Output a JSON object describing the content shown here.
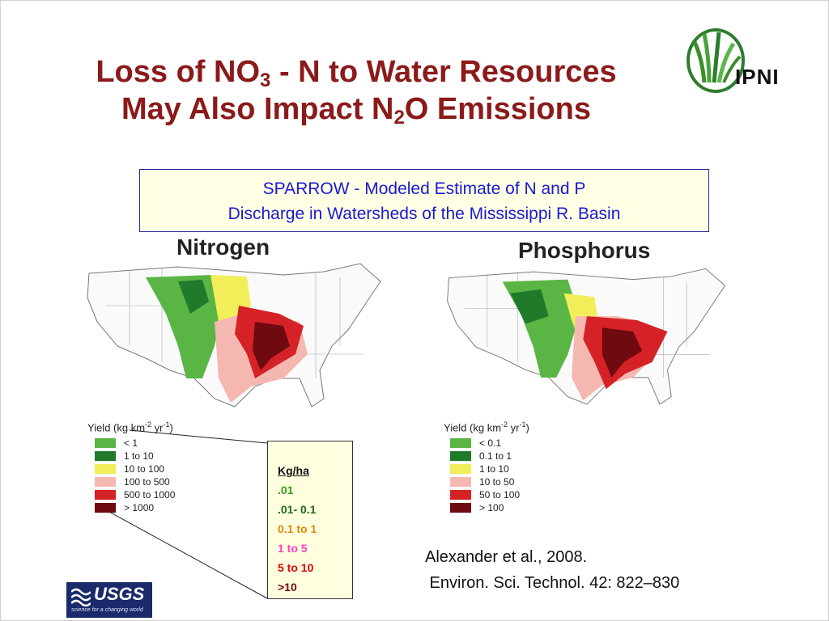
{
  "title": {
    "line1_a": "Loss of NO",
    "line1_sub": "3",
    "line1_b": " - N to Water Resources",
    "line2_a": "May Also Impact N",
    "line2_sub": "2",
    "line2_b": "O Emissions"
  },
  "logo": {
    "text": "IPNI",
    "icon": "ipni-grass-icon"
  },
  "sparrow_box": {
    "line1": "SPARROW - Modeled Estimate of  N  and P",
    "line2": "Discharge in Watersheds of the Mississippi R. Basin"
  },
  "maps": {
    "nitrogen": {
      "title": "Nitrogen",
      "yield_title_a": "Yield (kg km",
      "yield_title_sup": "-2",
      "yield_title_b": " yr",
      "yield_title_sup2": "-1",
      "yield_title_c": ")",
      "legend": [
        {
          "label": "< 1",
          "color": "#5ab545"
        },
        {
          "label": "1 to 10",
          "color": "#1f7a2a"
        },
        {
          "label": "10 to 100",
          "color": "#f2ee5a"
        },
        {
          "label": "100 to 500",
          "color": "#f5b8b0"
        },
        {
          "label": "500 to 1000",
          "color": "#d42226"
        },
        {
          "label": "> 1000",
          "color": "#6e0a10"
        }
      ]
    },
    "phosphorus": {
      "title": "Phosphorus",
      "yield_title_a": "Yield (kg km",
      "yield_title_sup": "-2",
      "yield_title_b": " yr",
      "yield_title_sup2": "-1",
      "yield_title_c": ")",
      "legend": [
        {
          "label": "< 0.1",
          "color": "#5ab545"
        },
        {
          "label": "0.1 to 1",
          "color": "#1f7a2a"
        },
        {
          "label": "1 to 10",
          "color": "#f2ee5a"
        },
        {
          "label": "10 to 50",
          "color": "#f5b8b0"
        },
        {
          "label": "50 to 100",
          "color": "#d42226"
        },
        {
          "label": "> 100",
          "color": "#6e0a10"
        }
      ]
    }
  },
  "kgha": {
    "header": "Kg/ha",
    "rows": [
      {
        "label": ".01",
        "color": "#3a9a1a"
      },
      {
        "label": ".01- 0.1",
        "color": "#1d6a16"
      },
      {
        "label": "0.1 to 1",
        "color": "#e08a00"
      },
      {
        "label": "1 to 5",
        "color": "#ff3fbf"
      },
      {
        "label": "5 to 10",
        "color": "#e00000"
      },
      {
        "label": ">10",
        "color": "#6e0a10"
      }
    ]
  },
  "citation": {
    "line1": "Alexander et al., 2008.",
    "line2": " Environ. Sci. Technol. 42: 822–830"
  },
  "usgs": {
    "text": "USGS",
    "tagline": "science for a changing world"
  },
  "colors": {
    "title": "#8b1a1a",
    "sparrow_text": "#1a1ad0"
  }
}
